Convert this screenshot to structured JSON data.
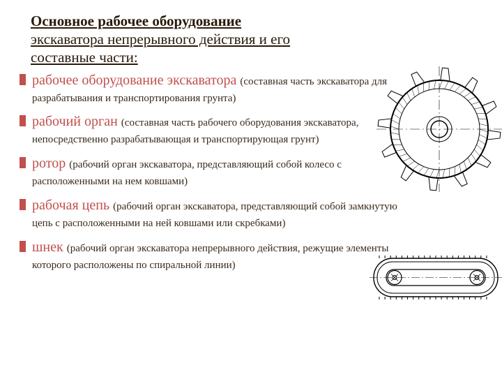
{
  "heading": {
    "main": "Основное рабочее оборудование",
    "sub1": "экскаватора непрерывного действия и его",
    "sub2": "составные части:"
  },
  "items": [
    {
      "term": "рабочее оборудование экскаватора ",
      "def": "(составная часть экскаватора  для разрабатывания и транспортирования грунта)"
    },
    {
      "term": " рабочий орган ",
      "def": "(составная часть рабочего оборудования экскаватора, непосредственно разрабатывающая и транспортирующая грунт)"
    },
    {
      "term": "ротор ",
      "def": "(рабочий орган экскаватора, представляющий собой колесо с расположенными на нем ковшами)"
    },
    {
      "term": "рабочая цепь ",
      "def": "(рабочий орган экскаватора, представляющий собой замкнутую цепь с расположенными на ней ковшами или скребками)"
    },
    {
      "term": " шнек ",
      "def": "(рабочий орган экскаватора непрерывного действия, режущие элементы которого расположены по спиральной линии)"
    }
  ],
  "styles": {
    "bullet_color": "#c0504d",
    "term_color": "#c0504d",
    "text_color": "#2a1a0a",
    "background": "#ffffff",
    "term_fontsize": 20,
    "def_fontsize": 15,
    "title_fontsize": 21
  },
  "figures": {
    "rotor": {
      "type": "rotor-wheel-drawing",
      "outer_radius": 70,
      "mid_radius": 58,
      "hub_radius": 12,
      "n_blades": 12,
      "stroke": "#000000",
      "fill": "#ffffff",
      "hatching_spacing": 5
    },
    "chain": {
      "type": "chain-assembly-drawing",
      "stroke": "#000000",
      "fill": "#ffffff",
      "n_teeth": 20
    }
  }
}
